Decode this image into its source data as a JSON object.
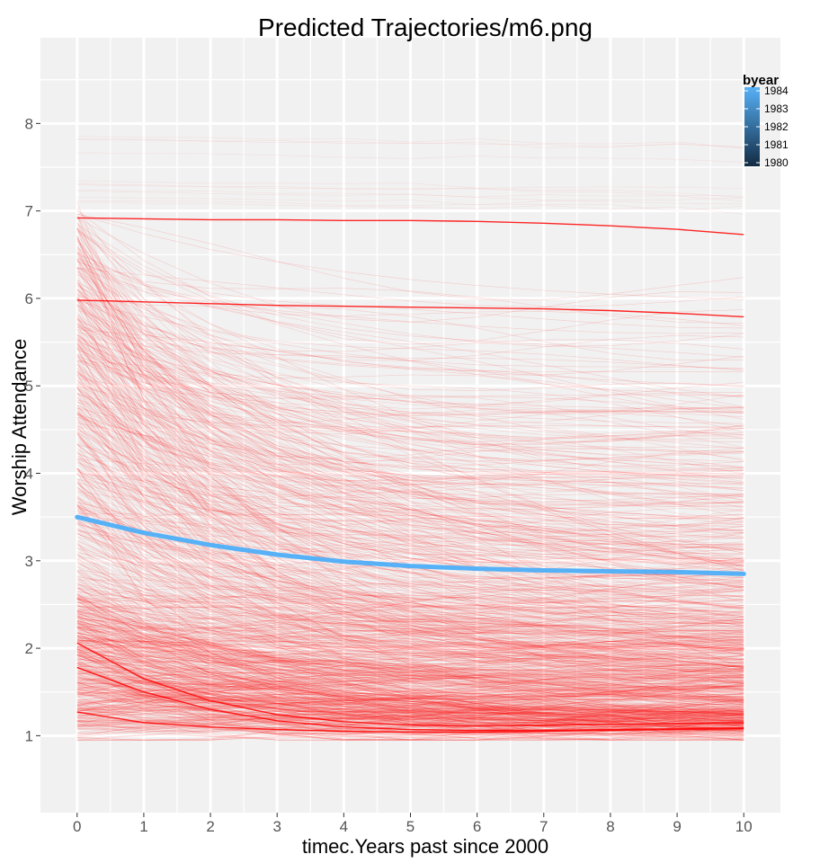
{
  "chart_data": {
    "type": "line",
    "title": "Predicted Trajectories/m6.png",
    "xlabel": "timec.Years past since 2000",
    "ylabel": "Worship Attendance",
    "xlim": [
      -0.55,
      10.55
    ],
    "ylim": [
      0.12,
      8.98
    ],
    "x_ticks": [
      "0",
      "1",
      "2",
      "3",
      "4",
      "5",
      "6",
      "7",
      "8",
      "9",
      "10"
    ],
    "y_ticks": [
      "1",
      "2",
      "3",
      "4",
      "5",
      "6",
      "7",
      "8"
    ],
    "grid": true,
    "colors": {
      "panel": "#f1f1f1",
      "grid": "#ffffff",
      "individual": "#ff0000",
      "mean": "#56b1f7",
      "legend_low": "#132b43",
      "legend_high": "#56b1f7"
    },
    "series": [
      {
        "x": [
          0,
          1,
          2,
          3,
          4,
          5,
          6,
          7,
          8,
          9,
          10
        ],
        "values": [
          3.5,
          3.32,
          3.18,
          3.07,
          2.99,
          2.94,
          2.91,
          2.89,
          2.88,
          2.87,
          2.85
        ]
      },
      {
        "x": [
          0,
          1,
          2,
          3,
          4,
          5,
          6,
          7,
          8,
          9,
          10
        ],
        "values": [
          6.92,
          6.91,
          6.9,
          6.9,
          6.89,
          6.89,
          6.88,
          6.86,
          6.83,
          6.79,
          6.73
        ]
      },
      {
        "x": [
          0,
          1,
          2,
          3,
          4,
          5,
          6,
          7,
          8,
          9,
          10
        ],
        "values": [
          5.98,
          5.96,
          5.94,
          5.92,
          5.91,
          5.9,
          5.89,
          5.88,
          5.86,
          5.83,
          5.79
        ]
      },
      {
        "x": [
          0,
          1,
          2,
          3,
          4,
          5,
          6,
          7,
          8,
          9,
          10
        ],
        "values": [
          1.27,
          1.15,
          1.1,
          1.07,
          1.05,
          1.04,
          1.04,
          1.05,
          1.06,
          1.07,
          1.08
        ]
      },
      {
        "x": [
          0,
          1,
          2,
          3,
          4,
          5,
          6,
          7,
          8,
          9,
          10
        ],
        "values": [
          1.78,
          1.5,
          1.3,
          1.17,
          1.1,
          1.07,
          1.06,
          1.06,
          1.07,
          1.08,
          1.09
        ]
      },
      {
        "x": [
          0,
          1,
          2,
          3,
          4,
          5,
          6,
          7,
          8,
          9,
          10
        ],
        "values": [
          2.06,
          1.65,
          1.4,
          1.24,
          1.16,
          1.12,
          1.11,
          1.12,
          1.13,
          1.14,
          1.15
        ]
      }
    ],
    "legend": {
      "title": "byear",
      "labels": [
        "1984",
        "1983",
        "1982",
        "1981",
        "1980"
      ],
      "values": [
        1984,
        1983,
        1982,
        1981,
        1980
      ],
      "placement": "top-right"
    }
  }
}
